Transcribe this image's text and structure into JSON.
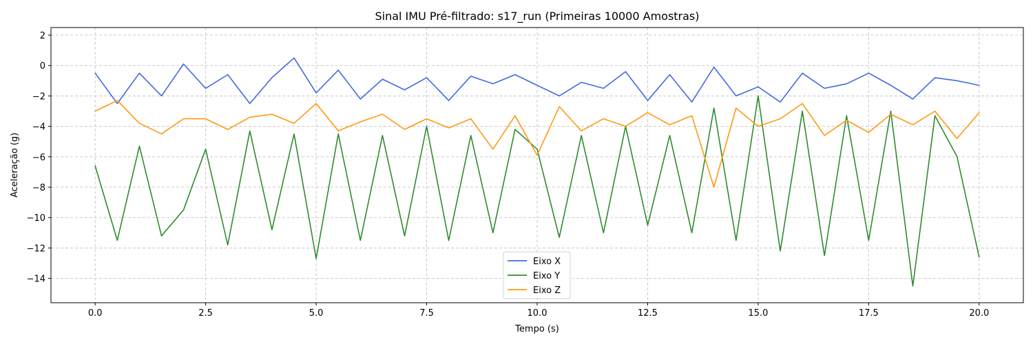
{
  "chart_data": {
    "type": "line",
    "title": "Sinal IMU Pré-filtrado: s17_run (Primeiras 10000 Amostras)",
    "xlabel": "Tempo (s)",
    "ylabel": "Aceleração (g)",
    "xlim": [
      -1.0,
      21.0
    ],
    "ylim": [
      -15.6,
      2.5
    ],
    "xticks": [
      0.0,
      2.5,
      5.0,
      7.5,
      10.0,
      12.5,
      15.0,
      17.5,
      20.0
    ],
    "xtick_labels": [
      "0.0",
      "2.5",
      "5.0",
      "7.5",
      "10.0",
      "12.5",
      "15.0",
      "17.5",
      "20.0"
    ],
    "yticks": [
      2,
      0,
      -2,
      -4,
      -6,
      -8,
      -10,
      -12,
      -14
    ],
    "ytick_labels": [
      "2",
      "0",
      "−2",
      "−4",
      "−6",
      "−8",
      "−10",
      "−12",
      "−14"
    ],
    "grid": true,
    "legend_position": "bottom-center",
    "x": [
      0.0,
      0.5,
      1.0,
      1.5,
      2.0,
      2.5,
      3.0,
      3.5,
      4.0,
      4.5,
      5.0,
      5.5,
      6.0,
      6.5,
      7.0,
      7.5,
      8.0,
      8.5,
      9.0,
      9.5,
      10.0,
      10.5,
      11.0,
      11.5,
      12.0,
      12.5,
      13.0,
      13.5,
      14.0,
      14.5,
      15.0,
      15.5,
      16.0,
      16.5,
      17.0,
      17.5,
      18.0,
      18.5,
      19.0,
      19.5,
      20.0
    ],
    "series": [
      {
        "name": "Eixo X",
        "color": "#4169e1",
        "values": [
          -0.5,
          -2.5,
          -0.5,
          -2.0,
          0.1,
          -1.5,
          -0.6,
          -2.5,
          -0.8,
          0.5,
          -1.8,
          -0.3,
          -2.2,
          -0.9,
          -1.6,
          -0.8,
          -2.3,
          -0.7,
          -1.2,
          -0.6,
          -1.3,
          -2.0,
          -1.1,
          -1.5,
          -0.4,
          -2.3,
          -0.6,
          -2.4,
          -0.1,
          -2.0,
          -1.4,
          -2.4,
          -0.5,
          -1.5,
          -1.2,
          -0.5,
          -1.3,
          -2.2,
          -0.8,
          -1.0,
          -1.3
        ]
      },
      {
        "name": "Eixo Y",
        "color": "#2e8b2e",
        "values": [
          -6.6,
          -11.5,
          -5.3,
          -11.2,
          -9.5,
          -5.5,
          -11.8,
          -4.3,
          -10.8,
          -4.5,
          -12.7,
          -4.5,
          -11.5,
          -4.6,
          -11.2,
          -4.0,
          -11.5,
          -4.6,
          -11.0,
          -4.2,
          -5.5,
          -11.3,
          -4.6,
          -11.0,
          -4.0,
          -10.5,
          -4.6,
          -11.0,
          -2.8,
          -11.5,
          -2.0,
          -12.2,
          -3.0,
          -12.5,
          -3.3,
          -11.5,
          -3.0,
          -14.5,
          -3.3,
          -6.0,
          -12.6
        ]
      },
      {
        "name": "Eixo Z",
        "color": "#ff9910",
        "values": [
          -3.0,
          -2.3,
          -3.8,
          -4.5,
          -3.5,
          -3.5,
          -4.2,
          -3.4,
          -3.2,
          -3.8,
          -2.5,
          -4.3,
          -3.7,
          -3.2,
          -4.2,
          -3.5,
          -4.1,
          -3.5,
          -5.5,
          -3.3,
          -5.9,
          -2.7,
          -4.3,
          -3.5,
          -4.0,
          -3.1,
          -3.9,
          -3.3,
          -8.0,
          -2.8,
          -4.0,
          -3.5,
          -2.5,
          -4.6,
          -3.6,
          -4.4,
          -3.2,
          -3.9,
          -3.0,
          -4.8,
          -3.1
        ]
      }
    ]
  }
}
